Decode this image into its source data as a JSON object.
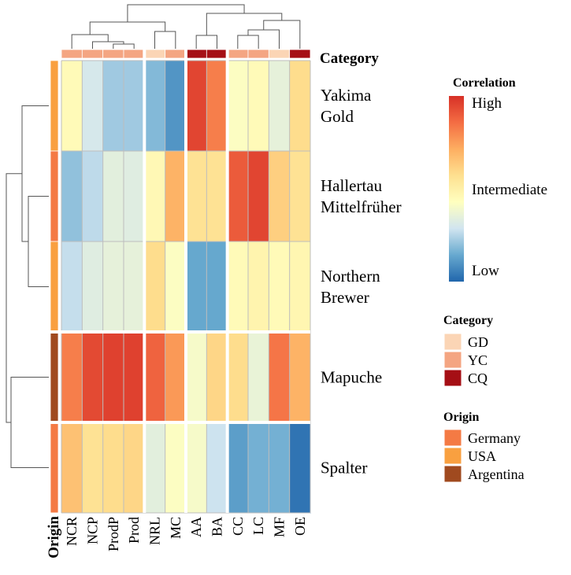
{
  "chart_data": {
    "type": "heatmap",
    "columns": [
      "NCR",
      "NCP",
      "ProdP",
      "Prod",
      "NRL",
      "MC",
      "AA",
      "BA",
      "CC",
      "LC",
      "MF",
      "OE"
    ],
    "rows": [
      {
        "label": [
          "Yakima",
          "Gold"
        ],
        "origin": "USA"
      },
      {
        "label": [
          "Hallertau",
          "Mittelfrüher"
        ],
        "origin": "Germany"
      },
      {
        "label": [
          "Northern",
          "Brewer"
        ],
        "origin": "USA"
      },
      {
        "label": [
          "Mapuche"
        ],
        "origin": "Argentina"
      },
      {
        "label": [
          "Spalter"
        ],
        "origin": "Germany"
      }
    ],
    "values": [
      [
        0.45,
        0.3,
        0.22,
        0.22,
        0.18,
        0.1,
        0.95,
        0.82,
        0.42,
        0.45,
        0.35,
        0.58
      ],
      [
        0.2,
        0.26,
        0.34,
        0.33,
        0.46,
        0.7,
        0.56,
        0.56,
        0.9,
        0.95,
        0.62,
        0.56
      ],
      [
        0.27,
        0.33,
        0.35,
        0.35,
        0.58,
        0.42,
        0.14,
        0.14,
        0.45,
        0.48,
        0.45,
        0.47
      ],
      [
        0.82,
        0.94,
        0.96,
        0.96,
        0.88,
        0.76,
        0.4,
        0.6,
        0.58,
        0.36,
        0.84,
        0.7
      ],
      [
        0.66,
        0.56,
        0.58,
        0.6,
        0.34,
        0.42,
        0.4,
        0.28,
        0.12,
        0.16,
        0.16,
        0.03
      ]
    ],
    "column_categories": [
      "YC",
      "YC",
      "YC",
      "YC",
      "GD",
      "YC",
      "CQ",
      "CQ",
      "YC",
      "YC",
      "GD",
      "CQ"
    ],
    "column_groups": [
      4,
      2,
      2,
      4
    ],
    "row_groups": [
      3,
      1,
      1
    ],
    "annotation_labels": {
      "columns": "Category",
      "rows": "Origin"
    },
    "legends": {
      "correlation": {
        "title": "Correlation",
        "labels": [
          "High",
          "Intermediate",
          "Low"
        ],
        "range": [
          0,
          1
        ],
        "colors": [
          "#2166ac",
          "#67a9cf",
          "#d1e5f0",
          "#ffffbf",
          "#fee090",
          "#fdae61",
          "#f46d43",
          "#d73027"
        ]
      },
      "category": {
        "title": "Category",
        "items": [
          {
            "label": "GD",
            "color": "#fbd5b5"
          },
          {
            "label": "YC",
            "color": "#f4a582"
          },
          {
            "label": "CQ",
            "color": "#a50f15"
          }
        ]
      },
      "origin": {
        "title": "Origin",
        "items": [
          {
            "label": "Germany",
            "color": "#f47a44"
          },
          {
            "label": "USA",
            "color": "#f9a040"
          },
          {
            "label": "Argentina",
            "color": "#a04a1f"
          }
        ]
      }
    }
  }
}
